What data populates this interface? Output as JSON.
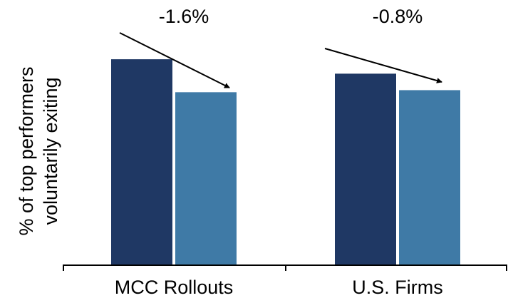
{
  "chart_data": {
    "type": "bar",
    "title": "",
    "xlabel": "",
    "ylabel": "% of top performers voluntarily exiting",
    "ylabel_lines": [
      "% of top performers",
      "voluntarily exiting"
    ],
    "categories": [
      "MCC Rollouts",
      "U.S. Firms"
    ],
    "series": [
      {
        "values": [
          10.0,
          9.3
        ]
      },
      {
        "values": [
          8.4,
          8.5
        ]
      }
    ],
    "ylim": [
      0,
      10.8
    ],
    "grid": false,
    "legend": "none",
    "annotations": [
      {
        "category": "MCC Rollouts",
        "text": "-1.6%"
      },
      {
        "category": "U.S. Firms",
        "text": "-0.8%"
      }
    ]
  },
  "colors": {
    "series": [
      "#1f3864",
      "#3f7aa6"
    ],
    "axis": "#000000"
  }
}
